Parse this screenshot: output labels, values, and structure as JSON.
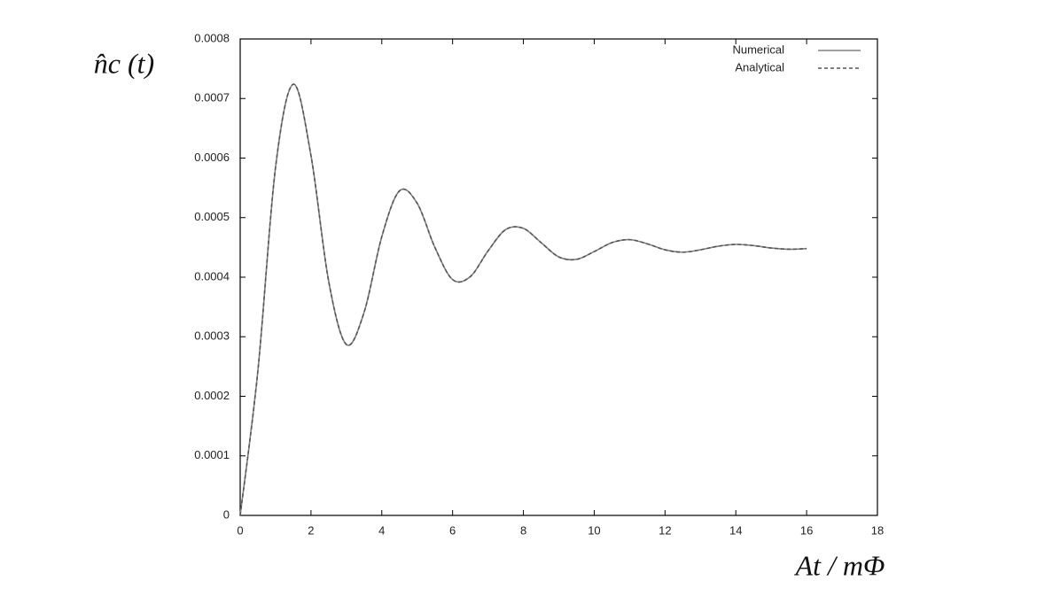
{
  "chart_data": {
    "type": "line",
    "y_label": "n̂c (t)",
    "x_label": "At / mΦ",
    "x": [
      0,
      0.5,
      1,
      1.5,
      2,
      2.5,
      3,
      3.5,
      4,
      4.5,
      5,
      5.5,
      6,
      6.5,
      7,
      7.5,
      8,
      8.5,
      9,
      9.5,
      10,
      10.5,
      11,
      11.5,
      12,
      12.5,
      13,
      13.5,
      14,
      14.5,
      15,
      15.5,
      16
    ],
    "series": [
      {
        "name": "Numerical",
        "color": "#808080",
        "dash": "solid",
        "values": [
          0,
          0.000243,
          0.000585,
          0.000724,
          0.000604,
          0.000393,
          0.000287,
          0.000341,
          0.000468,
          0.000545,
          0.000524,
          0.00045,
          0.000396,
          0.000401,
          0.000444,
          0.00048,
          0.000482,
          0.000458,
          0.000434,
          0.00043,
          0.000443,
          0.000458,
          0.000463,
          0.000456,
          0.000446,
          0.000442,
          0.000446,
          0.000452,
          0.000455,
          0.000453,
          0.000449,
          0.000447,
          0.000448
        ]
      },
      {
        "name": "Analytical",
        "color": "#555555",
        "dash": "dashed",
        "values": [
          0,
          0.000243,
          0.000585,
          0.000724,
          0.000604,
          0.000393,
          0.000287,
          0.000341,
          0.000468,
          0.000545,
          0.000524,
          0.00045,
          0.000396,
          0.000401,
          0.000444,
          0.00048,
          0.000482,
          0.000458,
          0.000434,
          0.00043,
          0.000443,
          0.000458,
          0.000463,
          0.000456,
          0.000446,
          0.000442,
          0.000446,
          0.000452,
          0.000455,
          0.000453,
          0.000449,
          0.000447,
          0.000448
        ]
      }
    ],
    "xlim": [
      0,
      18
    ],
    "xticks": [
      0,
      2,
      4,
      6,
      8,
      10,
      12,
      14,
      16,
      18
    ],
    "ylim": [
      0,
      0.0008
    ],
    "yticks": [
      0,
      0.0001,
      0.0002,
      0.0003,
      0.0004,
      0.0005,
      0.0006,
      0.0007,
      0.0008
    ],
    "legend": "top-right",
    "grid": false
  }
}
